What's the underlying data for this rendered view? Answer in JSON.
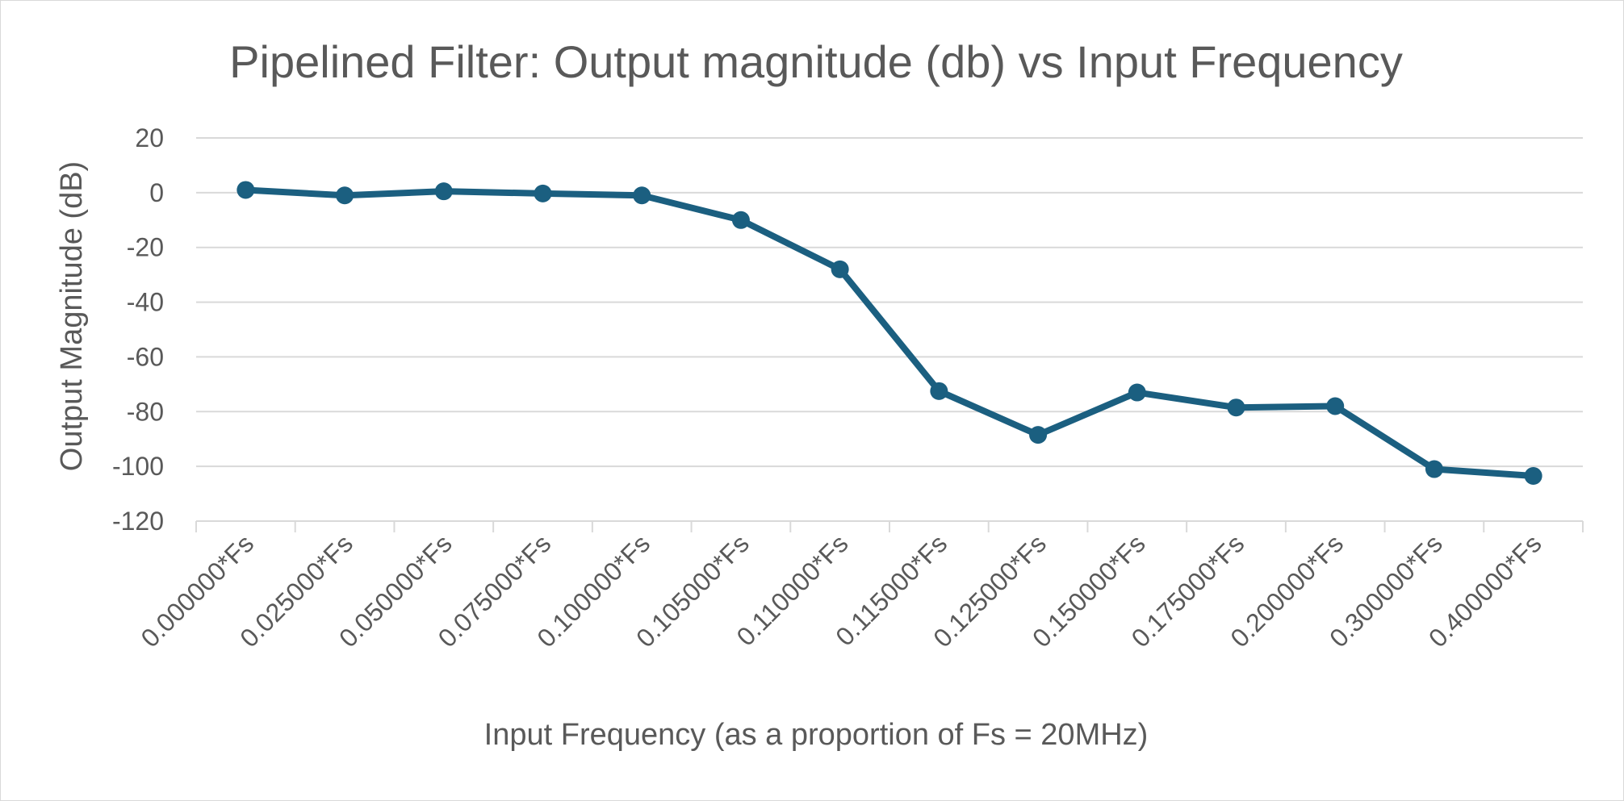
{
  "chart_data": {
    "type": "line",
    "title": "Pipelined Filter: Output magnitude (db) vs Input Frequency",
    "xlabel": "Input Frequency (as a proportion of Fs = 20MHz)",
    "ylabel": "Output Magnitude (dB)",
    "categories": [
      "0.000000*Fs",
      "0.025000*Fs",
      "0.050000*Fs",
      "0.075000*Fs",
      "0.100000*Fs",
      "0.105000*Fs",
      "0.110000*Fs",
      "0.115000*Fs",
      "0.125000*Fs",
      "0.150000*Fs",
      "0.175000*Fs",
      "0.200000*Fs",
      "0.300000*Fs",
      "0.400000*Fs"
    ],
    "series": [
      {
        "values": [
          1,
          -1,
          0.5,
          -0.3,
          -1,
          -10,
          -28,
          -72.5,
          -88.5,
          -73,
          -78.5,
          -78,
          -101,
          -103.5
        ],
        "color": "#1b5f80"
      }
    ],
    "ylim": [
      -120,
      20
    ],
    "yticks": [
      20,
      0,
      -20,
      -40,
      -60,
      -80,
      -100,
      -120
    ],
    "grid": true,
    "legend": "none"
  }
}
